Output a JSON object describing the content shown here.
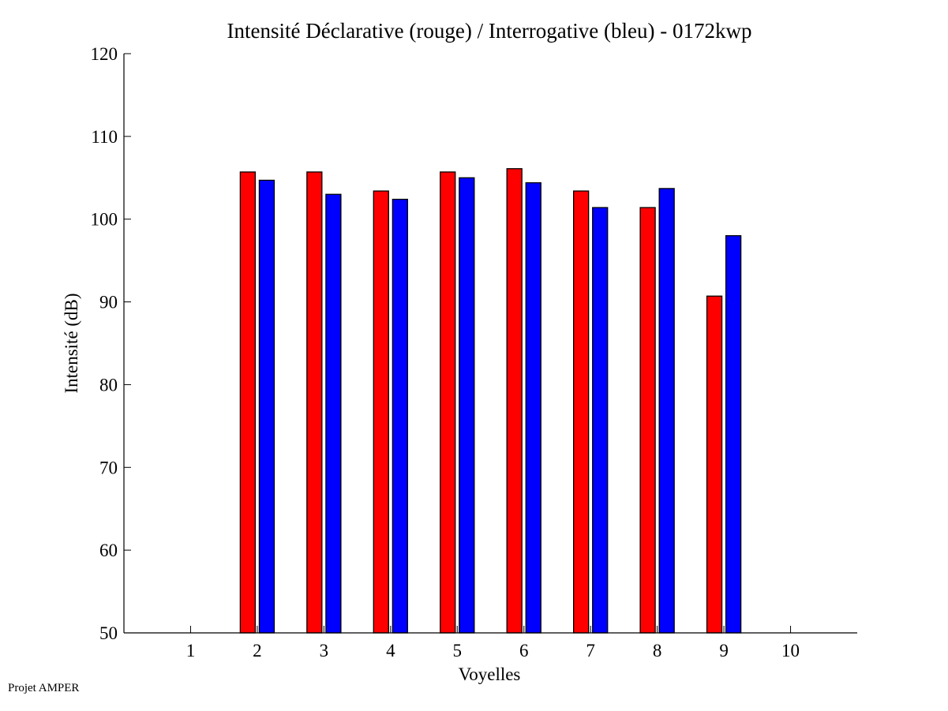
{
  "chart_data": {
    "type": "bar",
    "title": "Intensité Déclarative (rouge) / Interrogative (bleu) - 0172kwp",
    "xlabel": "Voyelles",
    "ylabel": "Intensité (dB)",
    "xlim": [
      0,
      11
    ],
    "ylim": [
      50,
      120
    ],
    "xticks": [
      1,
      2,
      3,
      4,
      5,
      6,
      7,
      8,
      9,
      10
    ],
    "yticks": [
      50,
      60,
      70,
      80,
      90,
      100,
      110,
      120
    ],
    "grid": false,
    "categories": [
      2,
      3,
      4,
      5,
      6,
      7,
      8,
      9
    ],
    "series": [
      {
        "name": "Déclarative (rouge)",
        "color": "#ff0000",
        "values": [
          105.7,
          105.7,
          103.4,
          105.7,
          106.1,
          103.4,
          101.4,
          90.7
        ]
      },
      {
        "name": "Interrogative (bleu)",
        "color": "#0000ff",
        "values": [
          104.7,
          103.0,
          102.4,
          105.0,
          104.4,
          101.4,
          103.7,
          98.0
        ]
      }
    ]
  },
  "footer": "Projet AMPER"
}
